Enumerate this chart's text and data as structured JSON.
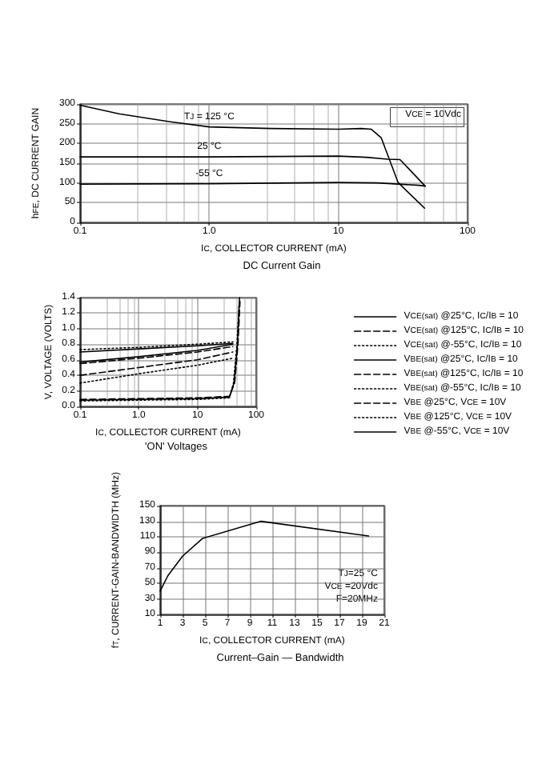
{
  "chart_data": [
    {
      "type": "line",
      "title": "DC Current Gain",
      "xlabel": "I$_{C}$, COLLECTOR CURRENT (mA)",
      "ylabel": "h$_{FE}$, DC CURRENT GAIN",
      "log": "x",
      "xlim": [
        0.1,
        100
      ],
      "xticks": [
        0.1,
        {
          "value": 1,
          "label": "1.0"
        },
        10,
        100
      ],
      "ylim": [
        0,
        300
      ],
      "yticks": [
        0,
        50,
        100,
        150,
        200,
        250,
        300
      ],
      "grid": true,
      "legend": false,
      "marker": "none",
      "line_style": "solid",
      "annotations": [
        "V$_{CE}$ = 10Vdc"
      ],
      "series": [
        {
          "name": "T$_{J}$ = 125 °C",
          "color": "#000000",
          "x": [
            0.1,
            0.2,
            0.5,
            1,
            3,
            10,
            15,
            18,
            21.5,
            29,
            46.5
          ],
          "values": [
            297,
            275,
            255,
            242,
            238,
            236,
            238,
            236,
            214,
            101,
            36
          ]
        },
        {
          "name": "25 °C",
          "color": "#000000",
          "x": [
            0.1,
            1,
            10,
            16.5,
            24,
            30,
            38,
            47
          ],
          "values": [
            166,
            166,
            168,
            165,
            160,
            159,
            124,
            92
          ]
        },
        {
          "name": "-55 °C",
          "color": "#000000",
          "x": [
            0.1,
            1,
            10,
            20,
            42,
            47
          ],
          "values": [
            97,
            98,
            101,
            100,
            94,
            92
          ]
        }
      ]
    },
    {
      "type": "line",
      "title": "'ON' Voltages",
      "xlabel": "I$_{C}$, COLLECTOR CURRENT (mA)",
      "ylabel": "V, VOLTAGE (VOLTS)",
      "log": "x",
      "xlim": [
        0.1,
        100
      ],
      "xticks": [
        0.1,
        {
          "value": 1,
          "label": "1.0"
        },
        10,
        100
      ],
      "ylim": [
        0,
        1.4
      ],
      "yticks": [
        {
          "value": 0,
          "label": "0.0"
        },
        0.2,
        0.4,
        0.6,
        0.8,
        {
          "value": 1,
          "label": "1.0"
        },
        1.2,
        1.4
      ],
      "grid": true,
      "legend": "right",
      "marker": "none",
      "series": [
        {
          "name": "V$_{CE(sat)}$ @25°C, I$_{C}$/I$_{B}$ = 10",
          "color": "#000000",
          "line_style": "solid",
          "x": [
            0.1,
            10,
            35,
            42,
            48,
            52
          ],
          "values": [
            0.08,
            0.1,
            0.12,
            0.3,
            0.8,
            1.4
          ]
        },
        {
          "name": "V$_{CE(sat)}$ @125°C, I$_{C}$/I$_{B}$ = 10",
          "color": "#000000",
          "line_style": "dashed",
          "x": [
            0.1,
            10,
            35,
            43,
            49,
            53
          ],
          "values": [
            0.09,
            0.11,
            0.13,
            0.3,
            0.8,
            1.35
          ]
        },
        {
          "name": "V$_{CE(sat)}$ @-55°C, I$_{C}$/I$_{B}$ = 10",
          "color": "#000000",
          "line_style": "dotted",
          "x": [
            0.1,
            10,
            35,
            41,
            47,
            51
          ],
          "values": [
            0.07,
            0.09,
            0.11,
            0.3,
            0.8,
            1.3
          ]
        },
        {
          "name": "V$_{BE(sat)}$ @25°C, I$_{C}$/I$_{B}$ = 10",
          "color": "#000000",
          "line_style": "solid",
          "x": [
            0.1,
            1,
            10,
            40
          ],
          "values": [
            0.57,
            0.64,
            0.72,
            0.8
          ]
        },
        {
          "name": "V$_{BE(sat)}$ @125°C, I$_{C}$/I$_{B}$ = 10",
          "color": "#000000",
          "line_style": "dashed",
          "x": [
            0.1,
            1,
            10,
            40
          ],
          "values": [
            0.4,
            0.5,
            0.6,
            0.7
          ]
        },
        {
          "name": "V$_{BE(sat)}$ @-55°C, I$_{C}$/I$_{B}$ = 10",
          "color": "#000000",
          "line_style": "dotted",
          "x": [
            0.1,
            1,
            10,
            40
          ],
          "values": [
            0.73,
            0.76,
            0.8,
            0.83
          ]
        },
        {
          "name": "V$_{BE}$ @25°C, V$_{CE}$ = 10V",
          "color": "#000000",
          "line_style": "dashed",
          "x": [
            0.1,
            1,
            10,
            40
          ],
          "values": [
            0.55,
            0.62,
            0.7,
            0.77
          ]
        },
        {
          "name": "V$_{BE}$ @125°C, V$_{CE}$ = 10V",
          "color": "#000000",
          "line_style": "dotted",
          "x": [
            0.1,
            1,
            10,
            40
          ],
          "values": [
            0.3,
            0.42,
            0.53,
            0.62
          ]
        },
        {
          "name": "V$_{BE}$ @-55°C, V$_{CE}$ = 10V",
          "color": "#000000",
          "line_style": "solid",
          "x": [
            0.1,
            1,
            10,
            40
          ],
          "values": [
            0.7,
            0.74,
            0.78,
            0.81
          ]
        }
      ]
    },
    {
      "type": "line",
      "title": "Current–Gain — Bandwidth",
      "xlabel": "I$_{C}$, COLLECTOR CURRENT (mA)",
      "ylabel": "f$_{T}$, CURRENT-GAIN-BANDWIDTH (MHz)",
      "xlim": [
        1,
        21
      ],
      "xticks": [
        1,
        3,
        5,
        7,
        9,
        11,
        13,
        15,
        17,
        19,
        21
      ],
      "ylim": [
        10,
        150
      ],
      "yticks": [
        10,
        30,
        50,
        70,
        90,
        110,
        130,
        150
      ],
      "grid": true,
      "legend": false,
      "marker": "none",
      "line_style": "solid",
      "annotations": [
        "T$_{J}$=25 °C",
        "V$_{CE}$ =20Vdc",
        "F=20MHz"
      ],
      "series": [
        {
          "color": "#000000",
          "x": [
            1,
            1.7,
            3,
            4.8,
            10,
            19.6
          ],
          "values": [
            40,
            60,
            85,
            108,
            130,
            111
          ]
        }
      ]
    }
  ]
}
